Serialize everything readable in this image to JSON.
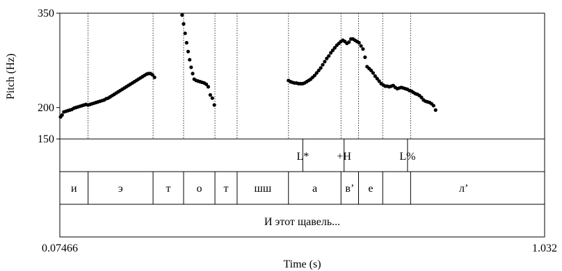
{
  "chart_data": {
    "type": "scatter",
    "xlabel": "Time (s)",
    "ylabel": "Pitch (Hz)",
    "xlim": [
      0.07466,
      1.032
    ],
    "ylim": [
      150,
      350
    ],
    "x_ticks": [
      "0.07466",
      "1.032"
    ],
    "y_ticks": [
      {
        "value": 350,
        "label": "350"
      },
      {
        "value": 200,
        "label": "200"
      },
      {
        "value": 150,
        "label": "150"
      }
    ],
    "segment_boundaries": [
      0.1305,
      0.2588,
      0.3191,
      0.381,
      0.4248,
      0.5262,
      0.6299,
      0.6646,
      0.7123,
      0.7674
    ],
    "tones": [
      {
        "time": 0.5545,
        "label": "L*"
      },
      {
        "time": 0.636,
        "label": "+H"
      },
      {
        "time": 0.7613,
        "label": "L%"
      }
    ],
    "segments": [
      {
        "label": "и",
        "start": 0.07466,
        "end": 0.1305
      },
      {
        "label": "э",
        "start": 0.1305,
        "end": 0.2588
      },
      {
        "label": "т",
        "start": 0.2588,
        "end": 0.3191
      },
      {
        "label": "о",
        "start": 0.3191,
        "end": 0.381
      },
      {
        "label": "т",
        "start": 0.381,
        "end": 0.4248
      },
      {
        "label": "шш",
        "start": 0.4248,
        "end": 0.5262
      },
      {
        "label": "а",
        "start": 0.5262,
        "end": 0.6299
      },
      {
        "label": "в’",
        "start": 0.6299,
        "end": 0.6646
      },
      {
        "label": "е",
        "start": 0.6646,
        "end": 0.7123
      },
      {
        "label": "л’",
        "start": 0.7123,
        "end": 1.032
      }
    ],
    "sentence": "И этот щавель...",
    "series": [
      {
        "points": [
          [
            0.0761,
            185
          ],
          [
            0.0791,
            188
          ],
          [
            0.0826,
            193
          ],
          [
            0.0866,
            194
          ],
          [
            0.0905,
            195
          ],
          [
            0.0945,
            196
          ],
          [
            0.0985,
            197
          ],
          [
            0.1025,
            199
          ],
          [
            0.1065,
            200
          ],
          [
            0.1104,
            201
          ],
          [
            0.1144,
            202
          ],
          [
            0.1184,
            203
          ],
          [
            0.1224,
            204
          ],
          [
            0.1264,
            205
          ],
          [
            0.1303,
            204
          ],
          [
            0.1343,
            205
          ],
          [
            0.1383,
            206
          ],
          [
            0.1423,
            207
          ],
          [
            0.1463,
            208
          ],
          [
            0.1502,
            209
          ],
          [
            0.1542,
            210
          ],
          [
            0.1582,
            211
          ],
          [
            0.1622,
            212
          ],
          [
            0.1662,
            214
          ],
          [
            0.1701,
            215
          ],
          [
            0.1741,
            217
          ],
          [
            0.1781,
            219
          ],
          [
            0.1821,
            221
          ],
          [
            0.1861,
            223
          ],
          [
            0.19,
            225
          ],
          [
            0.194,
            227
          ],
          [
            0.198,
            229
          ],
          [
            0.202,
            231
          ],
          [
            0.206,
            233
          ],
          [
            0.2099,
            235
          ],
          [
            0.2139,
            237
          ],
          [
            0.2179,
            239
          ],
          [
            0.2219,
            241
          ],
          [
            0.2259,
            243
          ],
          [
            0.2298,
            245
          ],
          [
            0.2338,
            247
          ],
          [
            0.2378,
            249
          ],
          [
            0.2418,
            251
          ],
          [
            0.2458,
            253
          ],
          [
            0.2497,
            254
          ],
          [
            0.2537,
            254
          ],
          [
            0.2577,
            252
          ],
          [
            0.2617,
            248
          ],
          [
            0.3161,
            347
          ],
          [
            0.3191,
            333
          ],
          [
            0.3221,
            318
          ],
          [
            0.3251,
            303
          ],
          [
            0.3281,
            289
          ],
          [
            0.3311,
            276
          ],
          [
            0.334,
            264
          ],
          [
            0.337,
            254
          ],
          [
            0.34,
            245
          ],
          [
            0.344,
            243
          ],
          [
            0.3479,
            242
          ],
          [
            0.3519,
            241
          ],
          [
            0.3559,
            240
          ],
          [
            0.3599,
            239
          ],
          [
            0.3639,
            237
          ],
          [
            0.3678,
            233
          ],
          [
            0.3718,
            220
          ],
          [
            0.3758,
            215
          ],
          [
            0.3798,
            204
          ],
          [
            0.5262,
            243
          ],
          [
            0.5302,
            241
          ],
          [
            0.5341,
            240
          ],
          [
            0.5381,
            239
          ],
          [
            0.5421,
            239
          ],
          [
            0.5461,
            238
          ],
          [
            0.5501,
            238
          ],
          [
            0.554,
            238
          ],
          [
            0.558,
            239
          ],
          [
            0.562,
            241
          ],
          [
            0.566,
            243
          ],
          [
            0.57,
            245
          ],
          [
            0.5739,
            248
          ],
          [
            0.5779,
            251
          ],
          [
            0.5819,
            255
          ],
          [
            0.5859,
            259
          ],
          [
            0.5899,
            263
          ],
          [
            0.5938,
            268
          ],
          [
            0.5978,
            273
          ],
          [
            0.6018,
            278
          ],
          [
            0.6058,
            282
          ],
          [
            0.6098,
            287
          ],
          [
            0.6137,
            291
          ],
          [
            0.6177,
            295
          ],
          [
            0.6217,
            299
          ],
          [
            0.6257,
            302
          ],
          [
            0.6297,
            305
          ],
          [
            0.6336,
            307
          ],
          [
            0.6376,
            305
          ],
          [
            0.6416,
            302
          ],
          [
            0.6456,
            304
          ],
          [
            0.6496,
            309
          ],
          [
            0.6535,
            309
          ],
          [
            0.6575,
            307
          ],
          [
            0.6615,
            305
          ],
          [
            0.6655,
            303
          ],
          [
            0.6695,
            298
          ],
          [
            0.6734,
            293
          ],
          [
            0.6774,
            280
          ],
          [
            0.6814,
            265
          ],
          [
            0.6854,
            262
          ],
          [
            0.6894,
            259
          ],
          [
            0.6933,
            255
          ],
          [
            0.6973,
            250
          ],
          [
            0.7013,
            246
          ],
          [
            0.7053,
            242
          ],
          [
            0.7093,
            238
          ],
          [
            0.7132,
            236
          ],
          [
            0.7172,
            234
          ],
          [
            0.7212,
            234
          ],
          [
            0.7252,
            233
          ],
          [
            0.7292,
            234
          ],
          [
            0.7331,
            235
          ],
          [
            0.7371,
            232
          ],
          [
            0.7411,
            230
          ],
          [
            0.7451,
            231
          ],
          [
            0.7491,
            232
          ],
          [
            0.753,
            231
          ],
          [
            0.757,
            230
          ],
          [
            0.761,
            229
          ],
          [
            0.765,
            227
          ],
          [
            0.769,
            226
          ],
          [
            0.7729,
            224
          ],
          [
            0.7769,
            222
          ],
          [
            0.7809,
            221
          ],
          [
            0.7849,
            219
          ],
          [
            0.7889,
            216
          ],
          [
            0.7928,
            212
          ],
          [
            0.7968,
            210
          ],
          [
            0.8008,
            209
          ],
          [
            0.8048,
            208
          ],
          [
            0.8088,
            206
          ],
          [
            0.8127,
            203
          ],
          [
            0.8167,
            196
          ]
        ]
      }
    ]
  }
}
